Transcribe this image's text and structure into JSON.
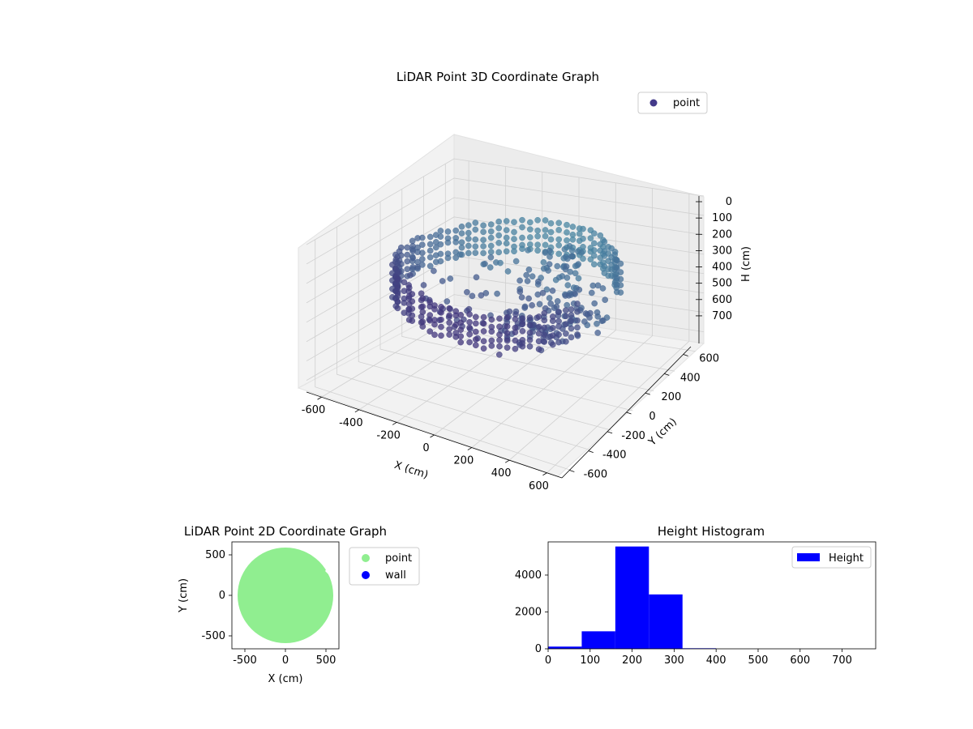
{
  "figure": {
    "colors": {
      "pane_bg": "#f2f2f2",
      "grid": "#d0d0d0",
      "points_3d_near": "#3f1e70",
      "points_3d_far": "#4a92a8",
      "legend_3d_marker": "#433a8a",
      "point_2d": "#90ee90",
      "wall_2d": "#0000ff",
      "histogram_bar": "#0000ff"
    }
  },
  "chart_data": [
    {
      "type": "scatter",
      "projection": "3d",
      "title": "LiDAR Point 3D Coordinate Graph",
      "xlabel": "X (cm)",
      "ylabel": "Y (cm)",
      "zlabel": "H (cm)",
      "xlim": [
        -680,
        680
      ],
      "ylim": [
        -680,
        680
      ],
      "zlim": [
        0,
        760
      ],
      "z_inverted": true,
      "xticks": [
        -600,
        -400,
        -200,
        0,
        200,
        400,
        600
      ],
      "yticks": [
        -600,
        -400,
        -200,
        0,
        200,
        400,
        600
      ],
      "zticks": [
        0,
        100,
        200,
        300,
        400,
        500,
        600,
        700
      ],
      "grid": true,
      "legend": {
        "position": "top-right",
        "entries": [
          "point"
        ]
      },
      "series": [
        {
          "name": "point",
          "shape": "ring-wall-point-cloud",
          "ring_radius": 520,
          "ring_gap_angle_deg": [
            -20,
            25
          ],
          "z_range": [
            180,
            330
          ],
          "interior_clutter": [
            {
              "x": 120,
              "y": 250,
              "z_range": [
                150,
                400
              ]
            },
            {
              "x": 350,
              "y": 80,
              "z_range": [
                250,
                480
              ]
            },
            {
              "x": 200,
              "y": -100,
              "z_range": [
                300,
                480
              ]
            }
          ]
        }
      ]
    },
    {
      "type": "scatter",
      "projection": "2d",
      "title": "LiDAR Point 2D Coordinate Graph",
      "xlabel": "X (cm)",
      "ylabel": "Y (cm)",
      "xlim": [
        -660,
        660
      ],
      "ylim": [
        -660,
        660
      ],
      "xticks": [
        -500,
        0,
        500
      ],
      "yticks": [
        -500,
        0,
        500
      ],
      "legend": {
        "position": "outside-right",
        "entries": [
          "point",
          "wall"
        ]
      },
      "series": [
        {
          "name": "point",
          "shape": "filled-disc",
          "center": [
            0,
            0
          ],
          "radius": 590
        },
        {
          "name": "wall",
          "count": 0
        }
      ]
    },
    {
      "type": "bar",
      "subtype": "histogram",
      "title": "Height Histogram",
      "xlim": [
        0,
        780
      ],
      "ylim": [
        0,
        5800
      ],
      "xticks": [
        0,
        100,
        200,
        300,
        400,
        500,
        600,
        700
      ],
      "yticks": [
        0,
        2000,
        4000
      ],
      "legend": {
        "position": "top-right",
        "entries": [
          "Height"
        ]
      },
      "bin_edges": [
        0,
        80,
        160,
        240,
        320,
        400,
        480,
        560,
        640,
        720,
        800
      ],
      "values": [
        120,
        950,
        5550,
        2950,
        30,
        0,
        0,
        0,
        0,
        0
      ],
      "series": [
        {
          "name": "Height"
        }
      ]
    }
  ]
}
